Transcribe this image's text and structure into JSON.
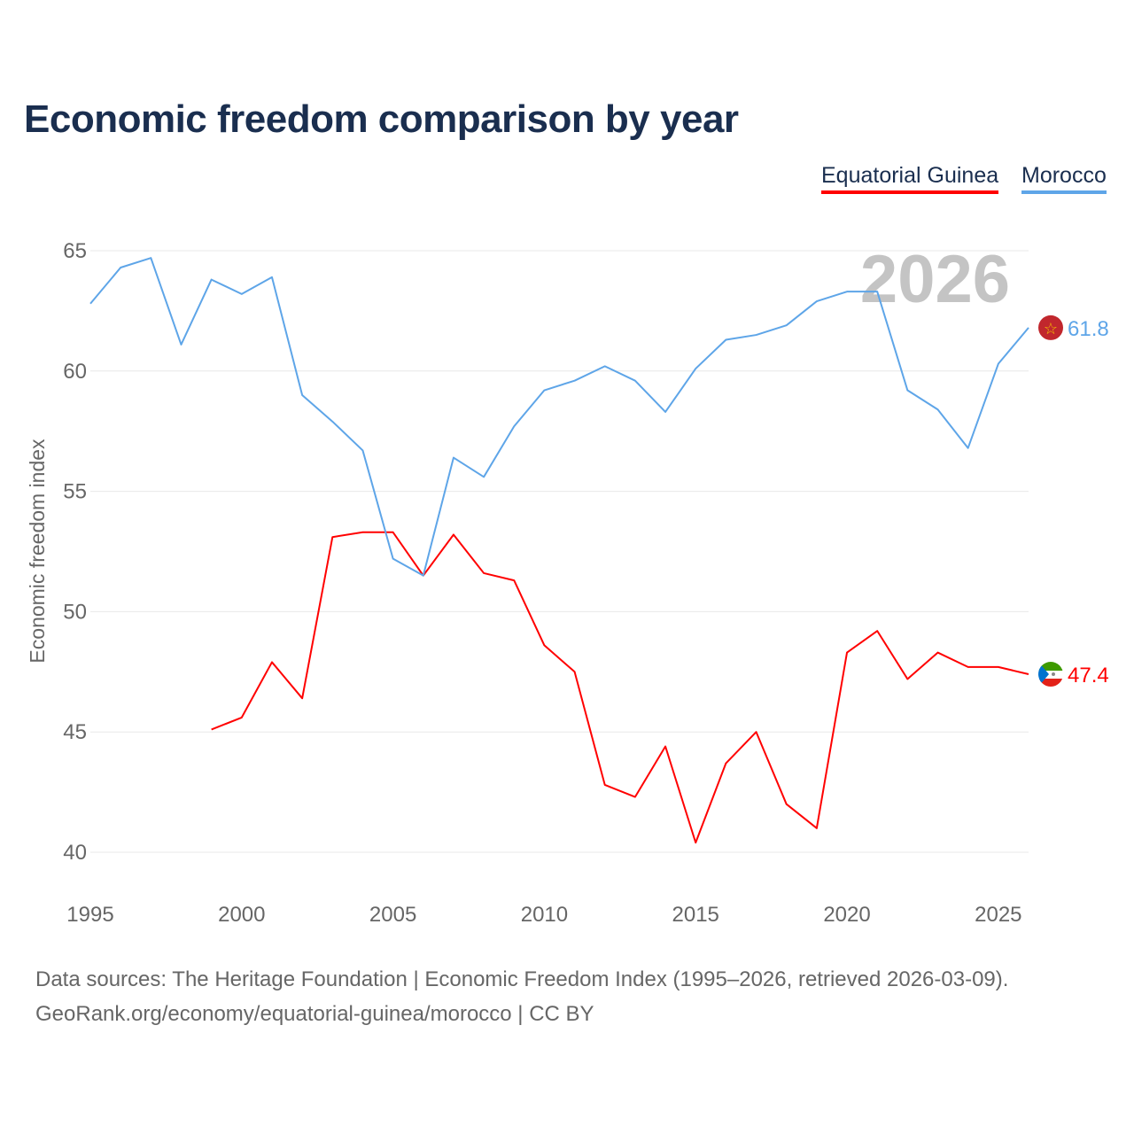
{
  "chart_data": {
    "type": "line",
    "title": "Economic freedom comparison by year",
    "xlabel": "",
    "ylabel": "Economic freedom index",
    "xlim": [
      1995,
      2026
    ],
    "ylim": [
      40,
      65
    ],
    "xticks": [
      "1995",
      "2000",
      "2005",
      "2010",
      "2015",
      "2020",
      "2025"
    ],
    "yticks": [
      "40",
      "45",
      "50",
      "55",
      "60",
      "65"
    ],
    "grid": true,
    "legend_position": "top-right",
    "year_watermark": "2026",
    "series": [
      {
        "name": "Equatorial Guinea",
        "color": "#ff0000",
        "end_label": "47.4",
        "flag": "equatorial-guinea-flag",
        "x": [
          1999,
          2000,
          2001,
          2002,
          2003,
          2004,
          2005,
          2006,
          2007,
          2008,
          2009,
          2010,
          2011,
          2012,
          2013,
          2014,
          2015,
          2016,
          2017,
          2018,
          2019,
          2020,
          2021,
          2022,
          2023,
          2024,
          2025,
          2026
        ],
        "values": [
          45.1,
          45.6,
          47.9,
          46.4,
          53.1,
          53.3,
          53.3,
          51.5,
          53.2,
          51.6,
          51.3,
          48.6,
          47.5,
          42.8,
          42.3,
          44.4,
          40.4,
          43.7,
          45.0,
          42.0,
          41.0,
          48.3,
          49.2,
          47.2,
          48.3,
          47.7,
          47.7,
          47.4
        ]
      },
      {
        "name": "Morocco",
        "color": "#5ea5e8",
        "end_label": "61.8",
        "flag": "morocco-flag",
        "x": [
          1995,
          1996,
          1997,
          1998,
          1999,
          2000,
          2001,
          2002,
          2003,
          2004,
          2005,
          2006,
          2007,
          2008,
          2009,
          2010,
          2011,
          2012,
          2013,
          2014,
          2015,
          2016,
          2017,
          2018,
          2019,
          2020,
          2021,
          2022,
          2023,
          2024,
          2025,
          2026
        ],
        "values": [
          62.8,
          64.3,
          64.7,
          61.1,
          63.8,
          63.2,
          63.9,
          59.0,
          57.9,
          56.7,
          52.2,
          51.5,
          56.4,
          55.6,
          57.7,
          59.2,
          59.6,
          60.2,
          59.6,
          58.3,
          60.1,
          61.3,
          61.5,
          61.9,
          62.9,
          63.3,
          63.3,
          59.2,
          58.4,
          56.8,
          60.3,
          61.8
        ]
      }
    ]
  },
  "footer": {
    "line1": "Data sources: The Heritage Foundation | Economic Freedom Index (1995–2026, retrieved 2026-03-09).",
    "line2": "GeoRank.org/economy/equatorial-guinea/morocco | CC BY"
  }
}
